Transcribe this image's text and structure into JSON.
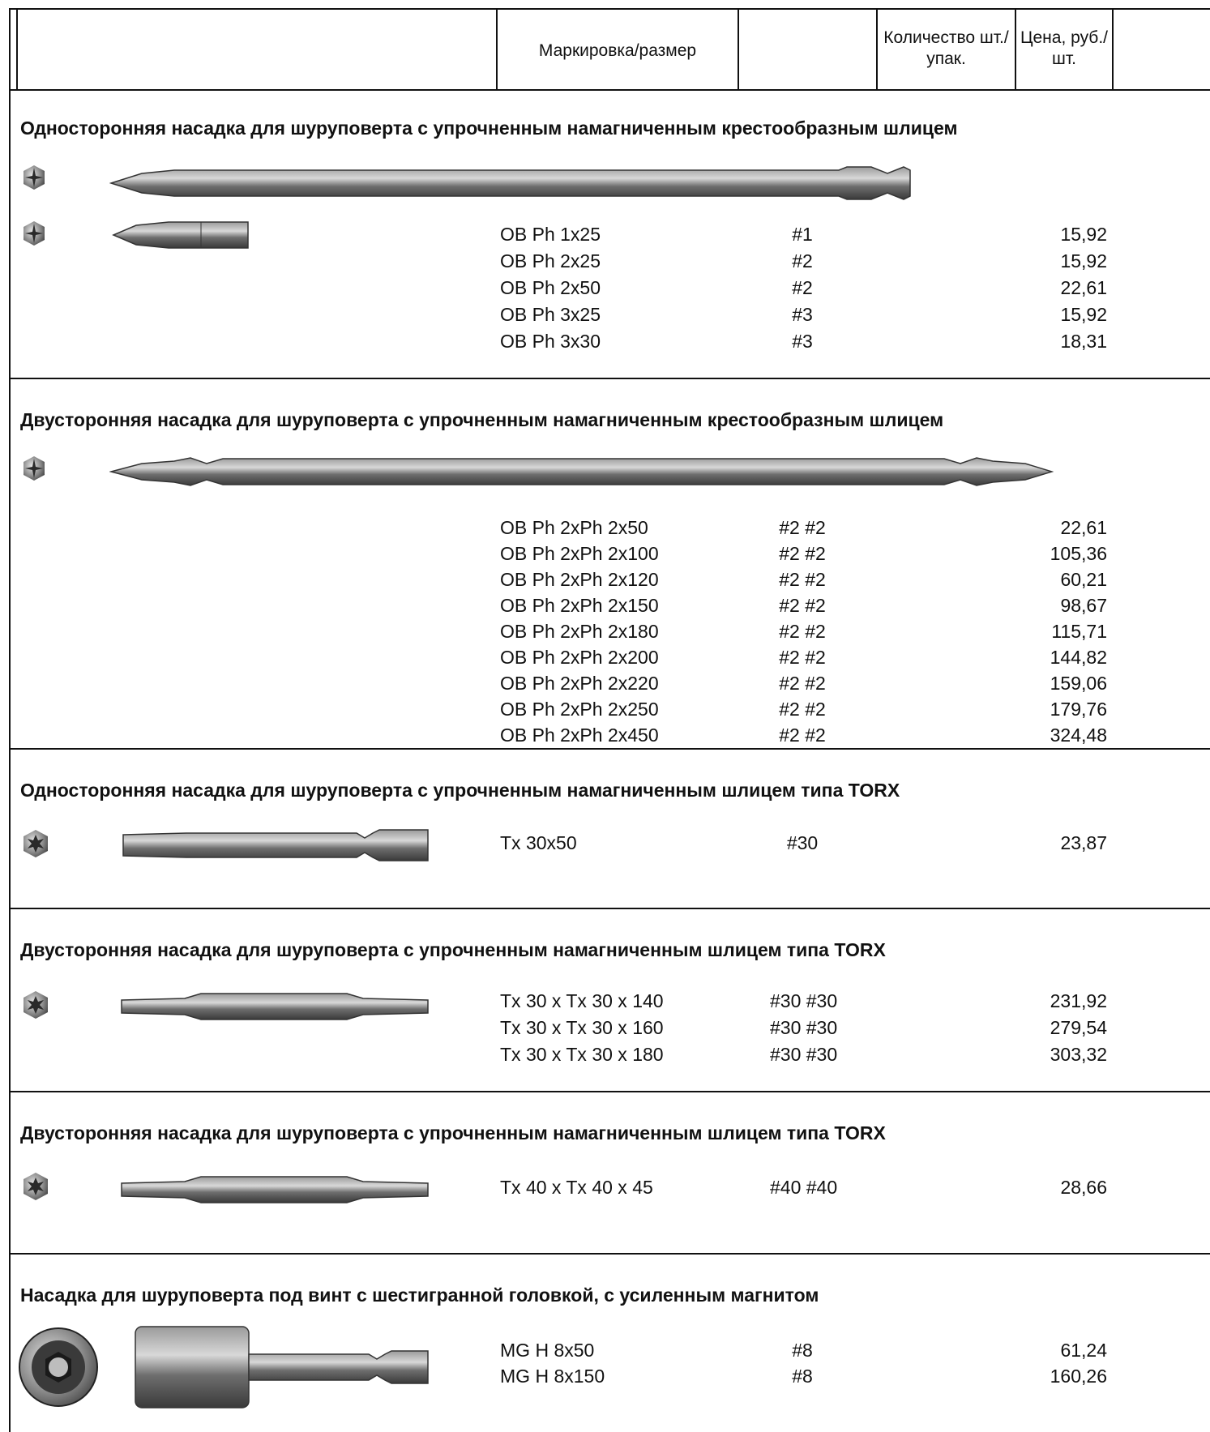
{
  "header": {
    "marking": "Маркировка/размер",
    "qty": "Количество шт./упак.",
    "price": "Цена, руб./шт."
  },
  "sections": [
    {
      "title": "Односторонняя насадка для шуруповерта с упрочненным намагниченным крестообразным шлицем",
      "rows": [
        {
          "mark": "OB Ph 1x25",
          "size": "#1",
          "price": "15,92"
        },
        {
          "mark": "OB Ph 2x25",
          "size": "#2",
          "price": "15,92"
        },
        {
          "mark": "OB Ph 2x50",
          "size": "#2",
          "price": "22,61"
        },
        {
          "mark": "OB Ph 3x25",
          "size": "#3",
          "price": "15,92"
        },
        {
          "mark": "OB Ph 3x30",
          "size": "#3",
          "price": "18,31"
        }
      ]
    },
    {
      "title": "Двусторонняя насадка для шуруповерта с упрочненным намагниченным крестообразным шлицем",
      "rows": [
        {
          "mark": "OB Ph 2xPh 2x50",
          "size": "#2 #2",
          "price": "22,61"
        },
        {
          "mark": "OB Ph 2xPh 2x100",
          "size": "#2 #2",
          "price": "105,36"
        },
        {
          "mark": "OB Ph 2xPh 2x120",
          "size": "#2 #2",
          "price": "60,21"
        },
        {
          "mark": "OB Ph 2xPh 2x150",
          "size": "#2 #2",
          "price": "98,67"
        },
        {
          "mark": "OB Ph 2xPh 2x180",
          "size": "#2 #2",
          "price": "115,71"
        },
        {
          "mark": "OB Ph 2xPh 2x200",
          "size": "#2 #2",
          "price": "144,82"
        },
        {
          "mark": "OB Ph 2xPh 2x220",
          "size": "#2 #2",
          "price": "159,06"
        },
        {
          "mark": "OB Ph 2xPh 2x250",
          "size": "#2 #2",
          "price": "179,76"
        },
        {
          "mark": "OB Ph 2xPh 2x450",
          "size": "#2 #2",
          "price": "324,48"
        }
      ]
    },
    {
      "title": "Односторонняя насадка для шуруповерта с упрочненным намагниченным шлицем типа TORX",
      "rows": [
        {
          "mark": "Tx 30x50",
          "size": "#30",
          "price": "23,87"
        }
      ]
    },
    {
      "title": "Двусторонняя насадка для шуруповерта с упрочненным намагниченным шлицем типа TORX",
      "rows": [
        {
          "mark": "Tx 30 x Tx 30 x 140",
          "size": "#30 #30",
          "price": "231,92"
        },
        {
          "mark": "Tx 30 x Tx 30 x 160",
          "size": "#30 #30",
          "price": "279,54"
        },
        {
          "mark": "Tx 30 x Tx 30 x 180",
          "size": "#30 #30",
          "price": "303,32"
        }
      ]
    },
    {
      "title": "Двусторонняя насадка для шуруповерта с упрочненным намагниченным шлицем типа TORX",
      "rows": [
        {
          "mark": "Tx 40 x Tx 40 x 45",
          "size": "#40 #40",
          "price": "28,66"
        }
      ]
    },
    {
      "title": "Насадка для шуруповерта под винт с шестигранной головкой, с усиленным магнитом",
      "rows": [
        {
          "mark": "MG H 8x50",
          "size": "#8",
          "price": "61,24"
        },
        {
          "mark": "MG H 8x150",
          "size": "#8",
          "price": "160,26"
        }
      ]
    }
  ]
}
